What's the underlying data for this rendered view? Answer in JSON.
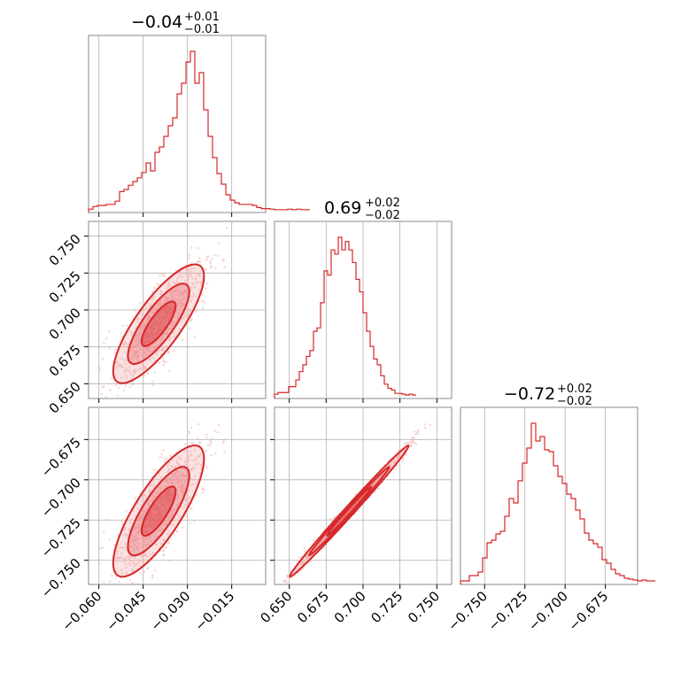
{
  "chart_data": {
    "type": "corner",
    "color": "#d62728",
    "fill_light": "#f4a6a8",
    "fill_mid": "#ea6a6e",
    "point_color": "#f2b9ba",
    "grid": true,
    "params": [
      {
        "median": -0.04,
        "title_main": "−0.04",
        "title_plus": "+0.01",
        "title_minus": "−0.01",
        "range": [
          -0.0635,
          -0.0035
        ]
      },
      {
        "median": 0.69,
        "title_main": "0.69",
        "title_plus": "+0.02",
        "title_minus": "−0.02",
        "range": [
          0.64,
          0.76
        ]
      },
      {
        "median": -0.72,
        "title_main": "−0.72",
        "title_plus": "+0.02",
        "title_minus": "−0.02",
        "range": [
          -0.765,
          -0.655
        ]
      }
    ],
    "ticks": {
      "p0": {
        "values": [
          -0.06,
          -0.045,
          -0.03,
          -0.015
        ],
        "labels": [
          "−0.060",
          "−0.045",
          "−0.030",
          "−0.015"
        ]
      },
      "p1": {
        "values": [
          0.65,
          0.675,
          0.7,
          0.725,
          0.75
        ],
        "labels": [
          "0.650",
          "0.675",
          "0.700",
          "0.725",
          "0.750"
        ]
      },
      "p2": {
        "values": [
          -0.75,
          -0.725,
          -0.7,
          -0.675
        ],
        "labels": [
          "−0.750",
          "−0.725",
          "−0.700",
          "−0.675"
        ]
      }
    },
    "histograms": {
      "p0": {
        "start": -0.0635,
        "bin_width": 0.0015,
        "counts": [
          3,
          8,
          10,
          10,
          12,
          12,
          18,
          36,
          40,
          48,
          55,
          62,
          72,
          90,
          75,
          110,
          120,
          140,
          160,
          175,
          220,
          240,
          280,
          300,
          240,
          260,
          190,
          140,
          100,
          70,
          50,
          30,
          20,
          15,
          12,
          12,
          12,
          10,
          6,
          4,
          4,
          3,
          2,
          2,
          2,
          3,
          2,
          3,
          2,
          2
        ]
      },
      "p1": {
        "start": 0.64,
        "bin_width": 0.0024,
        "counts": [
          3,
          5,
          5,
          5,
          12,
          12,
          20,
          30,
          38,
          48,
          55,
          78,
          82,
          112,
          150,
          145,
          175,
          170,
          190,
          175,
          185,
          175,
          160,
          140,
          125,
          100,
          78,
          60,
          45,
          38,
          25,
          15,
          10,
          8,
          4,
          4,
          3,
          2,
          3,
          2
        ]
      },
      "p2": {
        "start": -0.765,
        "bin_width": 0.00275,
        "counts": [
          2,
          2,
          8,
          8,
          12,
          28,
          45,
          48,
          55,
          58,
          75,
          95,
          90,
          115,
          135,
          152,
          180,
          160,
          165,
          150,
          148,
          132,
          120,
          112,
          100,
          95,
          82,
          72,
          56,
          48,
          44,
          40,
          26,
          22,
          15,
          10,
          8,
          5,
          4,
          3,
          2,
          3,
          2,
          2
        ]
      }
    }
  }
}
